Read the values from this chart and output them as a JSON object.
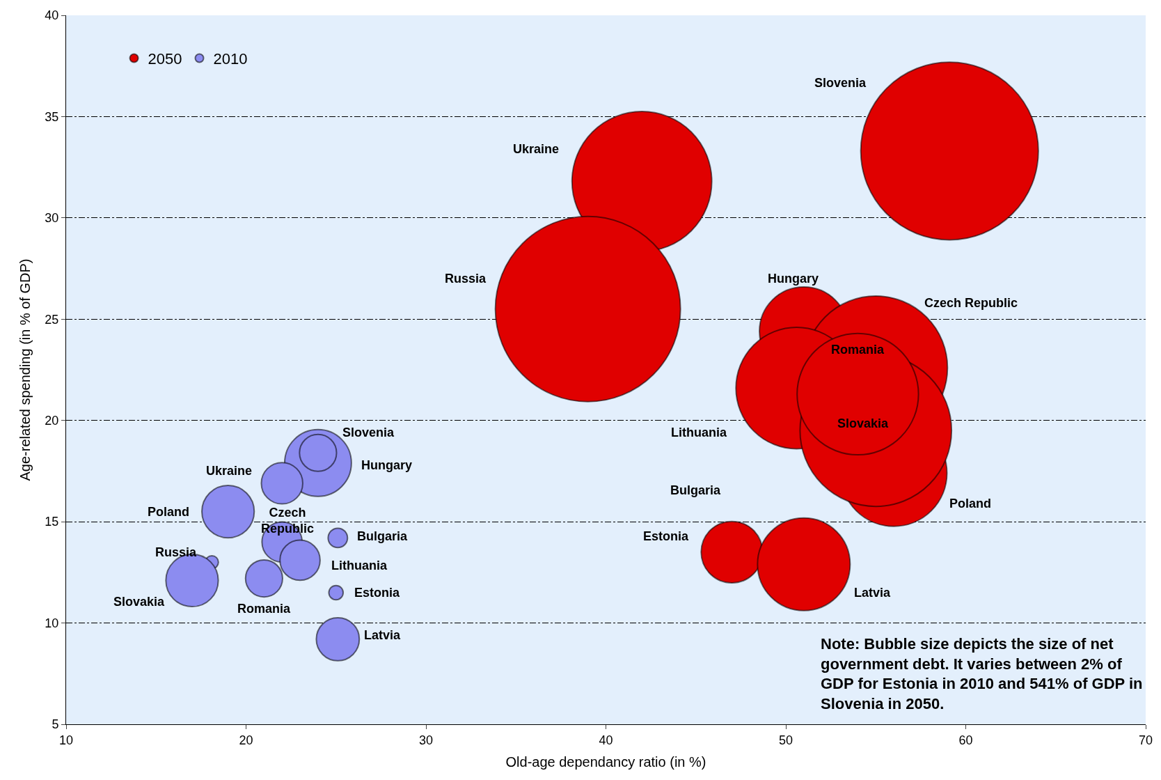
{
  "chart_data": {
    "type": "bubble",
    "xlabel": "Old-age dependancy ratio (in %)",
    "ylabel": "Age-related spending (in % of GDP)",
    "xlim": [
      10,
      70
    ],
    "xticks": [
      10,
      20,
      30,
      40,
      50,
      60,
      70
    ],
    "ylim": [
      5,
      40
    ],
    "yticks": [
      5,
      10,
      15,
      20,
      25,
      30,
      35,
      40
    ],
    "grid": "y",
    "legend": "top left",
    "series": [
      {
        "name": "2050",
        "color": "#e00000",
        "x": [
          59.1,
          42,
          39,
          51,
          55,
          56,
          50.6,
          55,
          54,
          47,
          51
        ],
        "values": [
          33.3,
          31.8,
          25.5,
          24.4,
          22.6,
          17.4,
          21.6,
          19.5,
          21.3,
          13.5,
          12.9
        ],
        "sizes": [
          0.92,
          0.57,
          1,
          0.23,
          0.6,
          0.33,
          0.43,
          0.67,
          0.43,
          0.11,
          0.25
        ]
      },
      {
        "name": "2010",
        "color": "#8c8cf0",
        "x": [
          24,
          24,
          22,
          19,
          22,
          25.1,
          23,
          18.1,
          17,
          21,
          25,
          25.1
        ],
        "values": [
          17.9,
          18.4,
          16.9,
          15.5,
          14,
          14.2,
          13.1,
          13,
          12.1,
          12.2,
          11.5,
          9.2
        ],
        "sizes": [
          0.13,
          0.04,
          0.05,
          0.08,
          0.047,
          0.011,
          0.047,
          0.005,
          0.08,
          0.04,
          0.006,
          0.054
        ]
      }
    ],
    "annotations": [
      "Slovenia",
      "Hungary",
      "Ukraine",
      "Poland",
      "Czech\nRepublic",
      "Bulgaria",
      "Russia",
      "Lithuania",
      "Slovakia",
      "Romania",
      "Estonia",
      "Latvia",
      "Slovenia",
      "Ukraine",
      "Russia",
      "Hungary",
      "Czech Republic",
      "Romania",
      "Lithuania",
      "Slovakia",
      "Bulgaria",
      "Poland",
      "Estonia",
      "Latvia",
      "Note: Bubble size depicts the size of net government debt. It varies between 2% of GDP for Estonia in 2010 and 541% of GDP in Slovenia in 2050."
    ]
  }
}
